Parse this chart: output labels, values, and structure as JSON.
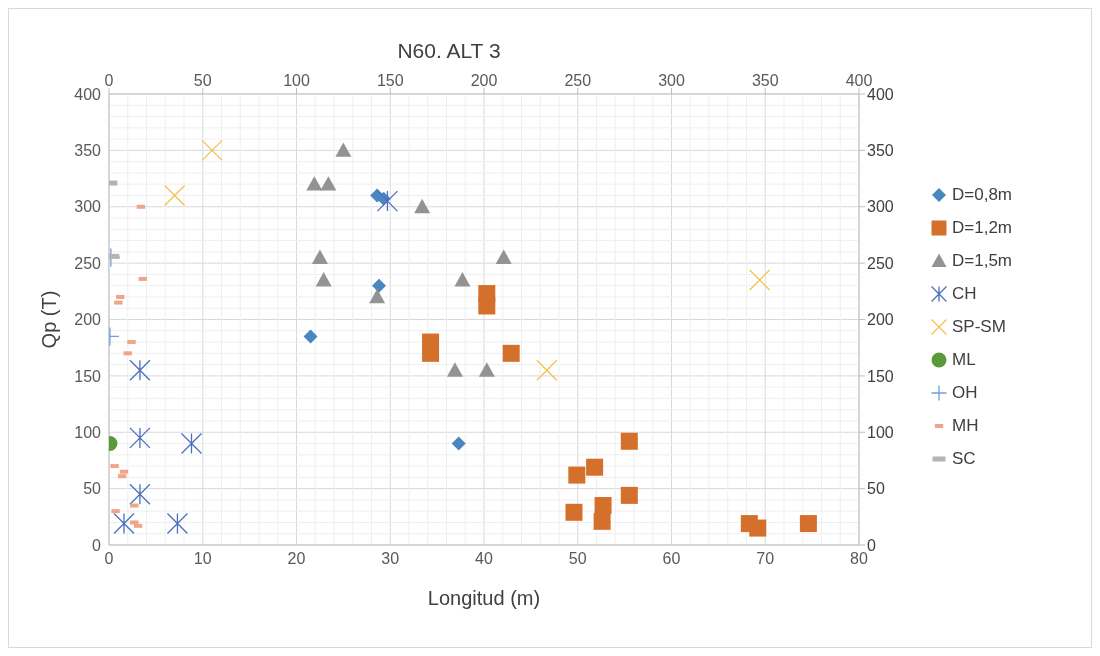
{
  "chart_data": {
    "type": "scatter",
    "title": "N60. ALT 3",
    "xlabel": "Longitud (m)",
    "ylabel": "Qp (T)",
    "xlim": [
      0,
      80
    ],
    "xticks": [
      0,
      10,
      20,
      30,
      40,
      50,
      60,
      70,
      80
    ],
    "ylim": [
      0,
      400
    ],
    "yticks": [
      0,
      50,
      100,
      150,
      200,
      250,
      300,
      350,
      400
    ],
    "x2lim": [
      0,
      400
    ],
    "x2ticks": [
      0,
      50,
      100,
      150,
      200,
      250,
      300,
      350,
      400
    ],
    "y2lim": [
      0,
      400
    ],
    "y2ticks": [
      0,
      50,
      100,
      150,
      200,
      250,
      300,
      350,
      400
    ],
    "grid": true,
    "legend": "right",
    "series": [
      {
        "name": "D=0,8m",
        "color": "#4a86c0",
        "marker": "diamond",
        "x": [
          28.6,
          29.3,
          28.8,
          21.5,
          37.3
        ],
        "values": [
          310,
          307,
          230,
          185,
          90
        ]
      },
      {
        "name": "D=1,2m",
        "color": "#d4702c",
        "marker": "square",
        "x": [
          40.3,
          40.3,
          34.3,
          34.3,
          42.9,
          55.5,
          49.9,
          51.8,
          49.6,
          52.7,
          52.6,
          55.5,
          68.3,
          69.2,
          74.6
        ],
        "values": [
          223,
          212,
          180,
          170,
          170,
          92,
          62,
          69,
          29,
          35,
          21,
          44,
          19,
          15,
          19
        ]
      },
      {
        "name": "D=1,5m",
        "color": "#939393",
        "marker": "triangle",
        "x": [
          25,
          21.9,
          23.4,
          33.4,
          22.5,
          22.9,
          28.6,
          42.1,
          37.7,
          36.9,
          40.3
        ],
        "values": [
          350,
          320,
          320,
          300,
          255,
          235,
          220,
          255,
          235,
          155,
          155
        ]
      },
      {
        "name": "CH",
        "color": "#4a6fc0",
        "marker": "cross",
        "x": [
          29.7,
          3.3,
          3.3,
          8.8,
          3.3,
          1.6,
          7.3
        ],
        "values": [
          305,
          155,
          95,
          90,
          45,
          19,
          19
        ]
      },
      {
        "name": "SP-SM",
        "color": "#f2c14e",
        "marker": "cross",
        "x": [
          11,
          7,
          46.7,
          69.4
        ],
        "values": [
          350,
          310,
          155,
          235
        ]
      },
      {
        "name": "ML",
        "color": "#5b9a3a",
        "marker": "circle",
        "x": [
          0.1
        ],
        "values": [
          90
        ]
      },
      {
        "name": "OH",
        "color": "#6fa0dc",
        "marker": "cross",
        "x": [
          0.2,
          0.1
        ],
        "values": [
          255,
          185
        ]
      },
      {
        "name": "MH",
        "color": "#f0a58a",
        "marker": "square",
        "x": [
          3.4,
          3.6,
          1.2,
          1.0,
          2.4,
          2.0,
          0.6,
          1.6,
          1.4,
          2.7,
          0.7,
          2.7,
          3.1
        ],
        "values": [
          300,
          236,
          220,
          215,
          180,
          170,
          70,
          65,
          61,
          35,
          30,
          20,
          17
        ]
      },
      {
        "name": "SC",
        "color": "#b4b4b4",
        "marker": "square",
        "x": [
          0.2,
          0.4
        ],
        "values": [
          321,
          256
        ]
      }
    ]
  }
}
